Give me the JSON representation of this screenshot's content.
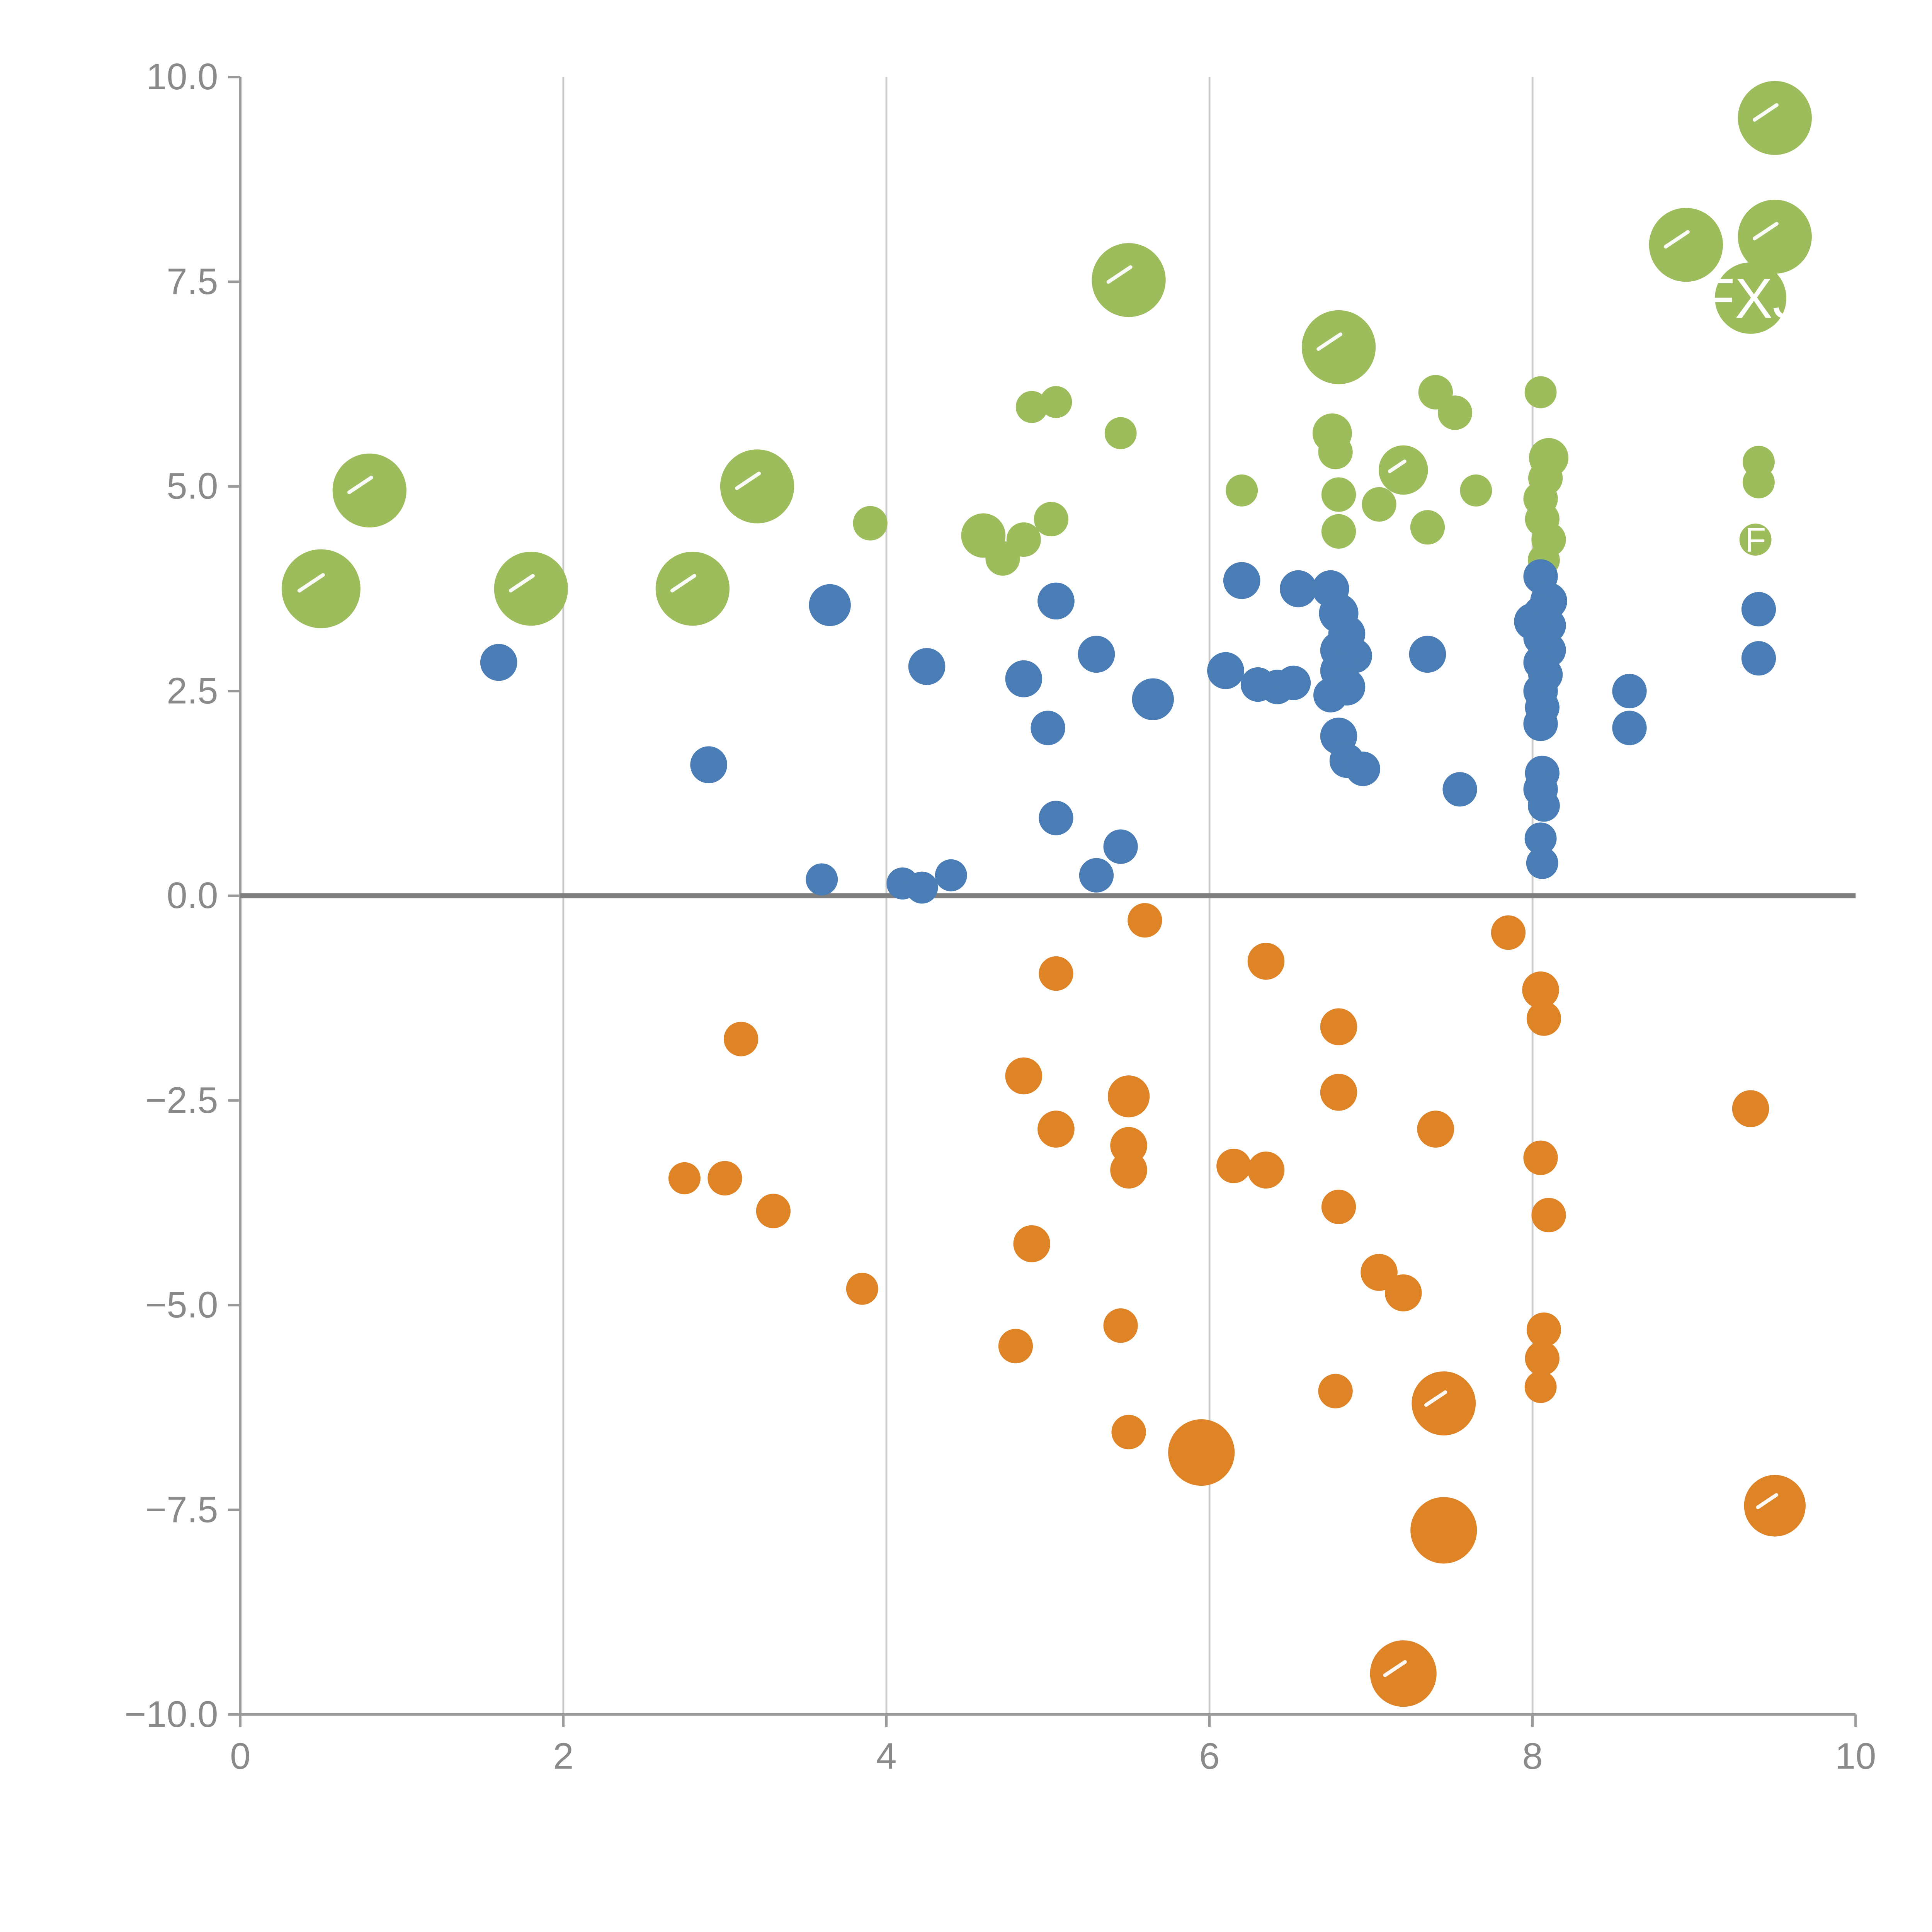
{
  "chart_data": {
    "type": "scatter",
    "title": "",
    "xlabel": "",
    "ylabel": "",
    "xlim": [
      0,
      10
    ],
    "ylim": [
      -10,
      10
    ],
    "x_ticks": [
      {
        "value": 0,
        "label": "0"
      },
      {
        "value": 2,
        "label": "2"
      },
      {
        "value": 4,
        "label": "4"
      },
      {
        "value": 6,
        "label": "6"
      },
      {
        "value": 8,
        "label": "8"
      },
      {
        "value": 10,
        "label": "10"
      }
    ],
    "y_ticks": [
      {
        "value": 10,
        "label": "10.0"
      },
      {
        "value": 7.5,
        "label": "7.5"
      },
      {
        "value": 5,
        "label": "5.0"
      },
      {
        "value": 2.5,
        "label": "2.5"
      },
      {
        "value": 0,
        "label": "0.0"
      },
      {
        "value": -2.5,
        "label": "−2.5"
      },
      {
        "value": -5,
        "label": "−5.0"
      },
      {
        "value": -7.5,
        "label": "−7.5"
      },
      {
        "value": -10,
        "label": "−10.0"
      }
    ],
    "gridlines": {
      "vertical_x": [
        2,
        4,
        6,
        8
      ],
      "zero_line": true
    },
    "legend": "none",
    "colors": {
      "grid": "#c9c9c9",
      "axis": "#9b9b9b",
      "tick_text": "#8a8a8a",
      "zero_line": "#7f7f7f",
      "background": "#ffffff",
      "bubble_label_text": "#ffffff"
    },
    "series": [
      {
        "name": "green",
        "color": "#9dbd5c",
        "points": [
          [
            0.8,
            4.95,
            30,
            "",
            1
          ],
          [
            0.5,
            3.75,
            32,
            "",
            1
          ],
          [
            1.8,
            3.75,
            30,
            "",
            1
          ],
          [
            2.8,
            3.75,
            30,
            "",
            1
          ],
          [
            3.2,
            5.0,
            30,
            "",
            1
          ],
          [
            3.9,
            4.55,
            14
          ],
          [
            4.6,
            4.4,
            18
          ],
          [
            4.72,
            4.12,
            14
          ],
          [
            4.85,
            4.35,
            14
          ],
          [
            4.9,
            5.97,
            13
          ],
          [
            5.05,
            6.03,
            13
          ],
          [
            5.02,
            4.6,
            14
          ],
          [
            5.45,
            5.65,
            13
          ],
          [
            5.5,
            7.52,
            30,
            "",
            1
          ],
          [
            6.2,
            4.95,
            13
          ],
          [
            6.8,
            6.7,
            30,
            "",
            1
          ],
          [
            6.76,
            5.65,
            16
          ],
          [
            6.78,
            5.42,
            14
          ],
          [
            6.8,
            4.9,
            14
          ],
          [
            6.8,
            4.45,
            14
          ],
          [
            7.05,
            4.78,
            14
          ],
          [
            7.2,
            5.2,
            20,
            "",
            1
          ],
          [
            7.4,
            6.15,
            14
          ],
          [
            7.52,
            5.9,
            14
          ],
          [
            7.35,
            4.5,
            14
          ],
          [
            7.65,
            4.95,
            13
          ],
          [
            8.05,
            6.15,
            13
          ],
          [
            8.1,
            5.35,
            16
          ],
          [
            8.08,
            5.1,
            14
          ],
          [
            8.05,
            4.85,
            14
          ],
          [
            8.06,
            4.6,
            14
          ],
          [
            8.1,
            4.35,
            14
          ],
          [
            8.07,
            4.1,
            13
          ],
          [
            8.95,
            7.95,
            30,
            "",
            1
          ],
          [
            9.5,
            9.5,
            30,
            "",
            1
          ],
          [
            9.5,
            8.05,
            30,
            "",
            1
          ],
          [
            9.35,
            7.3,
            29,
            "FXJ",
            0
          ],
          [
            9.4,
            5.3,
            13
          ],
          [
            9.4,
            5.05,
            13
          ],
          [
            9.38,
            4.35,
            13,
            "F",
            0
          ]
        ]
      },
      {
        "name": "blue",
        "color": "#4a7cb5",
        "points": [
          [
            1.6,
            2.85,
            15
          ],
          [
            2.9,
            1.6,
            15
          ],
          [
            3.65,
            3.55,
            17
          ],
          [
            3.6,
            0.2,
            13
          ],
          [
            4.1,
            0.15,
            13
          ],
          [
            4.22,
            0.1,
            13
          ],
          [
            4.25,
            2.8,
            15
          ],
          [
            4.4,
            0.25,
            13
          ],
          [
            4.85,
            2.65,
            15
          ],
          [
            5.0,
            2.05,
            14
          ],
          [
            5.05,
            0.95,
            14
          ],
          [
            5.05,
            3.6,
            15
          ],
          [
            5.3,
            2.95,
            15
          ],
          [
            5.3,
            0.25,
            14
          ],
          [
            5.45,
            0.6,
            14
          ],
          [
            5.65,
            2.4,
            17
          ],
          [
            6.1,
            2.75,
            15
          ],
          [
            6.2,
            3.85,
            15
          ],
          [
            6.3,
            2.58,
            14
          ],
          [
            6.42,
            2.55,
            14
          ],
          [
            6.52,
            2.6,
            14
          ],
          [
            6.55,
            3.75,
            15
          ],
          [
            6.75,
            3.75,
            15
          ],
          [
            6.8,
            3.45,
            16
          ],
          [
            6.85,
            3.2,
            15
          ],
          [
            6.8,
            3.0,
            15
          ],
          [
            6.9,
            2.93,
            14
          ],
          [
            6.8,
            2.75,
            15
          ],
          [
            6.85,
            2.55,
            15
          ],
          [
            6.75,
            2.45,
            14
          ],
          [
            6.8,
            1.95,
            15
          ],
          [
            6.85,
            1.65,
            14
          ],
          [
            6.95,
            1.55,
            14
          ],
          [
            7.35,
            2.95,
            15
          ],
          [
            7.55,
            1.3,
            14
          ],
          [
            8.0,
            3.35,
            15
          ],
          [
            8.05,
            3.9,
            14
          ],
          [
            8.1,
            3.6,
            15
          ],
          [
            8.05,
            3.45,
            14
          ],
          [
            8.1,
            3.3,
            14
          ],
          [
            8.05,
            3.15,
            14
          ],
          [
            8.1,
            3.0,
            14
          ],
          [
            8.05,
            2.85,
            14
          ],
          [
            8.08,
            2.7,
            14
          ],
          [
            8.05,
            2.5,
            14
          ],
          [
            8.06,
            2.3,
            14
          ],
          [
            8.05,
            2.1,
            14
          ],
          [
            8.06,
            1.5,
            14
          ],
          [
            8.05,
            1.3,
            14
          ],
          [
            8.07,
            1.1,
            13
          ],
          [
            8.05,
            0.7,
            13
          ],
          [
            8.06,
            0.4,
            13
          ],
          [
            8.6,
            2.5,
            14
          ],
          [
            8.6,
            2.05,
            14
          ],
          [
            9.4,
            3.5,
            14
          ],
          [
            9.4,
            2.9,
            14
          ]
        ]
      },
      {
        "name": "orange",
        "color": "#de8326",
        "points": [
          [
            5.6,
            -0.3,
            14
          ],
          [
            5.05,
            -0.95,
            14
          ],
          [
            6.35,
            -0.8,
            15
          ],
          [
            3.1,
            -1.75,
            14
          ],
          [
            7.85,
            -0.45,
            14
          ],
          [
            8.05,
            -1.15,
            15
          ],
          [
            8.07,
            -1.5,
            14
          ],
          [
            4.85,
            -2.2,
            15
          ],
          [
            5.5,
            -2.45,
            17
          ],
          [
            5.05,
            -2.85,
            15
          ],
          [
            6.8,
            -1.6,
            15
          ],
          [
            6.8,
            -2.4,
            15
          ],
          [
            7.4,
            -2.85,
            15
          ],
          [
            9.35,
            -2.6,
            15
          ],
          [
            2.75,
            -3.45,
            13
          ],
          [
            3.0,
            -3.45,
            14
          ],
          [
            5.5,
            -3.05,
            15
          ],
          [
            5.5,
            -3.35,
            15
          ],
          [
            6.15,
            -3.3,
            14
          ],
          [
            6.35,
            -3.35,
            15
          ],
          [
            3.3,
            -3.85,
            14
          ],
          [
            6.8,
            -3.8,
            14
          ],
          [
            4.9,
            -4.25,
            15
          ],
          [
            7.05,
            -4.6,
            15
          ],
          [
            7.2,
            -4.85,
            15
          ],
          [
            3.85,
            -4.8,
            13
          ],
          [
            4.8,
            -5.5,
            14
          ],
          [
            5.45,
            -5.25,
            14
          ],
          [
            8.05,
            -3.2,
            14
          ],
          [
            8.1,
            -3.9,
            14
          ],
          [
            8.07,
            -5.3,
            14
          ],
          [
            8.06,
            -5.65,
            14
          ],
          [
            8.05,
            -6.0,
            13
          ],
          [
            6.78,
            -6.05,
            14
          ],
          [
            7.45,
            -6.2,
            26,
            "",
            1
          ],
          [
            5.5,
            -6.55,
            14
          ],
          [
            5.95,
            -6.8,
            27
          ],
          [
            7.45,
            -7.75,
            27
          ],
          [
            9.5,
            -7.45,
            25,
            "",
            1
          ],
          [
            7.2,
            -9.5,
            27,
            "",
            1
          ]
        ]
      }
    ]
  }
}
